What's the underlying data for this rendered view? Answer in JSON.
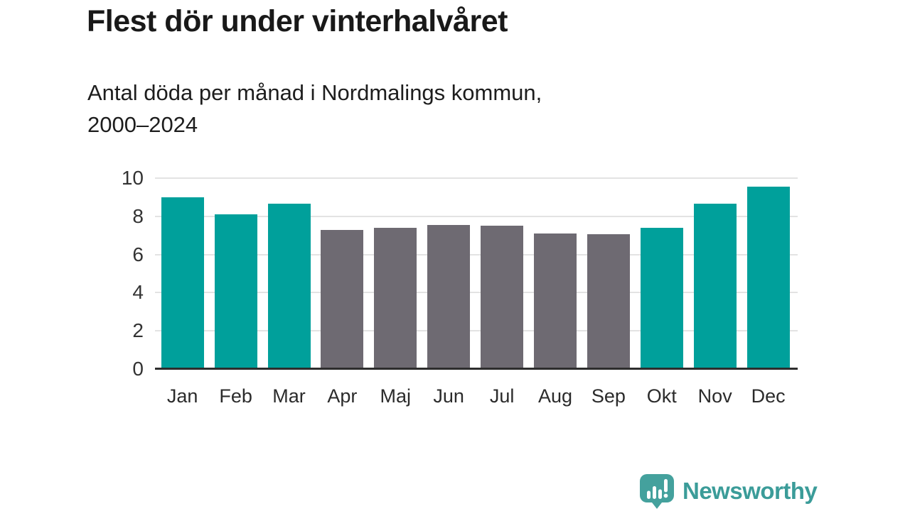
{
  "header": {
    "title": "Flest dör under vinterhalvåret",
    "subtitle_line1": "Antal döda per månad i Nordmalings kommun,",
    "subtitle_line2": "2000–2024"
  },
  "brand": {
    "name": "Newsworthy",
    "icon": "bar-chart-speech-bubble-icon",
    "color": "#3b9c99"
  },
  "colors": {
    "title_text": "#191919",
    "axis_text": "#333333",
    "axis_line": "#2d2d2d",
    "gridline": "#e3e3e3"
  },
  "chart_data": {
    "type": "bar",
    "title": "Flest dör under vinterhalvåret",
    "subtitle": "Antal döda per månad i Nordmalings kommun, 2000–2024",
    "categories": [
      "Jan",
      "Feb",
      "Mar",
      "Apr",
      "Maj",
      "Jun",
      "Jul",
      "Aug",
      "Sep",
      "Okt",
      "Nov",
      "Dec"
    ],
    "values": [
      9.0,
      8.1,
      8.65,
      7.3,
      7.4,
      7.55,
      7.5,
      7.1,
      7.05,
      7.4,
      8.65,
      9.55
    ],
    "bar_colors": [
      "winter",
      "winter",
      "winter",
      "summer",
      "summer",
      "summer",
      "summer",
      "summer",
      "summer",
      "winter",
      "winter",
      "winter"
    ],
    "series_colors": {
      "winter": "#00a09b",
      "summer": "#6e6a72"
    },
    "xlabel": "",
    "ylabel": "",
    "ylim": [
      0,
      10
    ],
    "yticks": [
      0,
      2,
      4,
      6,
      8,
      10
    ],
    "grid": true,
    "legend": false
  }
}
